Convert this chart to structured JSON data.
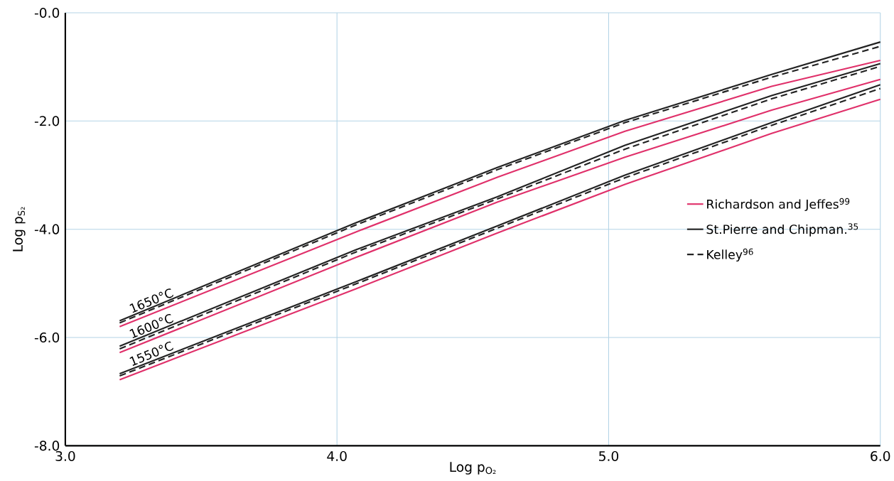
{
  "chart_data": {
    "type": "line",
    "xlabel": "Log p$_{O₂}$",
    "ylabel": "Log p$_{S₂}$",
    "xlim": [
      3.0,
      6.0
    ],
    "ylim": [
      -8.0,
      0.0
    ],
    "xticks": [
      {
        "value": 3.0,
        "label": "3.0"
      },
      {
        "value": 4.0,
        "label": "4.0"
      },
      {
        "value": 5.0,
        "label": "5.0"
      },
      {
        "value": 6.0,
        "label": "6.0"
      }
    ],
    "yticks": [
      {
        "value": 0.0,
        "label": "-0.0"
      },
      {
        "value": -2.0,
        "label": "-2.0"
      },
      {
        "value": -4.0,
        "label": "-4.0"
      },
      {
        "value": -6.0,
        "label": "-6.0"
      },
      {
        "value": -8.0,
        "label": "-8.0"
      }
    ],
    "grid": true,
    "legend": "right",
    "marker": "none",
    "x": [
      3.2,
      4.07,
      4.59,
      5.06,
      5.6,
      6.0
    ],
    "series": [
      {
        "name": "Richardson and Jeffes$^{99}$",
        "color": "#e0306a",
        "line_style": "solid",
        "values": [
          -5.8,
          -4.05,
          -3.04,
          -2.19,
          -1.36,
          -0.88
        ]
      },
      {
        "name": "St.Pierre and Chipman.$^{35}$",
        "color": "#222222",
        "line_style": "solid",
        "values": [
          -5.69,
          -3.88,
          -2.86,
          -1.99,
          -1.14,
          -0.54
        ]
      },
      {
        "name": "Kelley$^{96}$",
        "color": "#222222",
        "line_style": "dashed",
        "values": [
          -5.73,
          -3.92,
          -2.9,
          -2.03,
          -1.19,
          -0.62
        ]
      },
      {
        "color": "#e0306a",
        "line_style": "solid",
        "values": [
          -6.28,
          -4.52,
          -3.5,
          -2.67,
          -1.8,
          -1.23
        ]
      },
      {
        "color": "#222222",
        "line_style": "solid",
        "values": [
          -6.16,
          -4.38,
          -3.4,
          -2.45,
          -1.53,
          -0.94
        ]
      },
      {
        "color": "#222222",
        "line_style": "dashed",
        "values": [
          -6.21,
          -4.42,
          -3.44,
          -2.52,
          -1.59,
          -0.99
        ]
      },
      {
        "color": "#e0306a",
        "line_style": "solid",
        "values": [
          -6.78,
          -5.1,
          -4.07,
          -3.17,
          -2.23,
          -1.6
        ]
      },
      {
        "color": "#222222",
        "line_style": "solid",
        "values": [
          -6.67,
          -4.97,
          -3.94,
          -3.0,
          -2.03,
          -1.33
        ]
      },
      {
        "color": "#222222",
        "line_style": "dashed",
        "values": [
          -6.71,
          -5.01,
          -3.98,
          -3.05,
          -2.08,
          -1.4
        ]
      }
    ],
    "annotations": [
      "1650°C",
      "1600°C",
      "1550°C"
    ]
  }
}
